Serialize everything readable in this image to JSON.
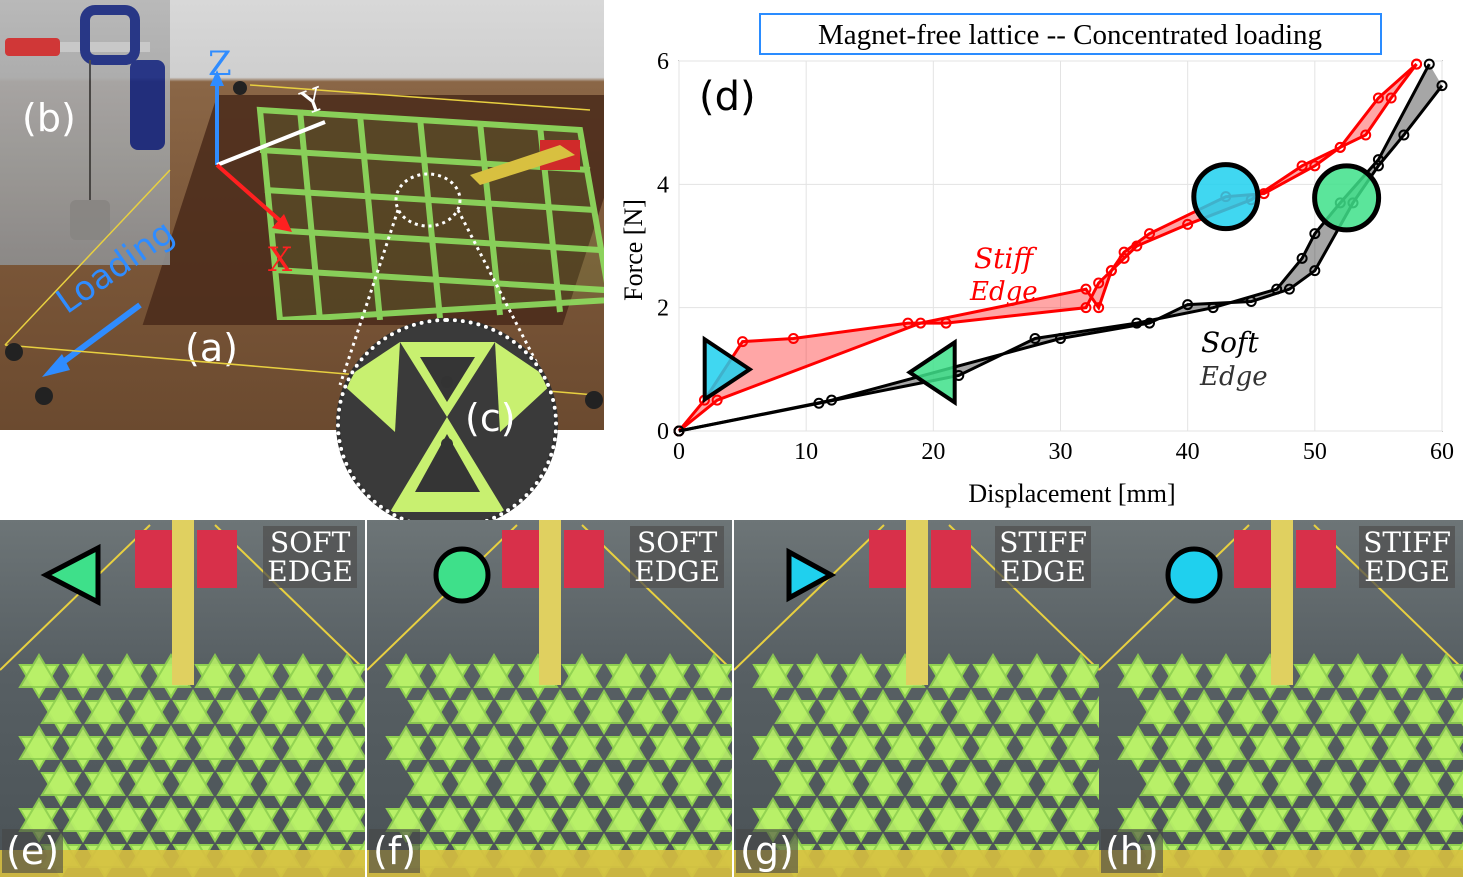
{
  "panel_a": {
    "label": "(a)",
    "loading_text": "Loading",
    "axis_z": "Z",
    "axis_y": "Y",
    "axis_x": "X"
  },
  "panel_b": {
    "label": "(b)"
  },
  "panel_c": {
    "label": "(c)"
  },
  "panel_d": {
    "label": "(d)",
    "stiff_edge_label_1": "Stiff",
    "stiff_edge_label_2": "Edge",
    "soft_edge_label_1": "Soft",
    "soft_edge_label_2": "Edge"
  },
  "chart_data": {
    "type": "line",
    "title": "Magnet-free lattice -- Concentrated loading",
    "xlabel": "Displacement [mm]",
    "ylabel": "Force [N]",
    "xlim": [
      0,
      60
    ],
    "ylim": [
      0,
      6
    ],
    "xticks": [
      0,
      10,
      20,
      30,
      40,
      50,
      60
    ],
    "yticks": [
      0,
      2,
      4,
      6
    ],
    "grid": true,
    "series": [
      {
        "name": "Stiff Edge loading",
        "color": "#ff0000",
        "x": [
          0,
          2,
          5,
          9,
          18,
          21,
          32,
          33,
          34,
          35,
          36,
          40,
          45,
          49,
          52,
          55,
          58
        ],
        "y": [
          0,
          0.5,
          1.45,
          1.5,
          1.75,
          1.75,
          2.0,
          2.4,
          2.6,
          2.8,
          3.0,
          3.35,
          3.75,
          4.3,
          4.6,
          5.4,
          5.95
        ]
      },
      {
        "name": "Stiff Edge unloading",
        "color": "#ff0000",
        "x": [
          58,
          56,
          54,
          52,
          50,
          46,
          43,
          37,
          35,
          34,
          33,
          32,
          19,
          3,
          0
        ],
        "y": [
          5.95,
          5.4,
          4.8,
          4.6,
          4.3,
          3.85,
          3.8,
          3.2,
          2.9,
          2.6,
          2.0,
          2.3,
          1.75,
          0.5,
          0
        ]
      },
      {
        "name": "Soft Edge loading",
        "color": "#000000",
        "x": [
          0,
          11,
          22,
          28,
          36,
          42,
          47,
          49,
          50,
          52,
          55,
          59
        ],
        "y": [
          0,
          0.45,
          0.9,
          1.5,
          1.75,
          2.0,
          2.3,
          2.8,
          3.2,
          3.7,
          4.4,
          5.95
        ]
      },
      {
        "name": "Soft Edge unloading",
        "color": "#000000",
        "x": [
          60,
          57,
          55,
          53,
          50,
          48,
          45,
          40,
          37,
          30,
          12,
          0
        ],
        "y": [
          5.6,
          4.8,
          4.3,
          3.7,
          2.6,
          2.3,
          2.1,
          2.05,
          1.75,
          1.5,
          0.5,
          0
        ]
      }
    ],
    "markers": [
      {
        "shape": "triangle-right",
        "color": "#1fd0ee",
        "x": 3.2,
        "y": 1.0,
        "series": "Stiff Edge"
      },
      {
        "shape": "circle",
        "color": "#1fd0ee",
        "x": 43.0,
        "y": 3.8,
        "series": "Stiff Edge"
      },
      {
        "shape": "triangle-left",
        "color": "#3ee08a",
        "x": 20.5,
        "y": 0.95,
        "series": "Soft Edge"
      },
      {
        "shape": "circle",
        "color": "#3ee08a",
        "x": 52.5,
        "y": 3.78,
        "series": "Soft Edge"
      }
    ]
  },
  "strips": [
    {
      "label": "(e)",
      "edge_tag_1": "SOFT",
      "edge_tag_2": "EDGE",
      "marker": "triangle-left",
      "marker_color": "#3ee08a"
    },
    {
      "label": "(f)",
      "edge_tag_1": "SOFT",
      "edge_tag_2": "EDGE",
      "marker": "circle",
      "marker_color": "#3ee08a"
    },
    {
      "label": "(g)",
      "edge_tag_1": "STIFF",
      "edge_tag_2": "EDGE",
      "marker": "triangle-right",
      "marker_color": "#1fd0ee"
    },
    {
      "label": "(h)",
      "edge_tag_1": "STIFF",
      "edge_tag_2": "EDGE",
      "marker": "circle",
      "marker_color": "#1fd0ee"
    }
  ],
  "colors": {
    "lattice_green": "#b8f068",
    "stiff_red": "#ff0000",
    "soft_black": "#000000",
    "cyan_marker": "#1fd0ee",
    "green_marker": "#3ee08a"
  }
}
